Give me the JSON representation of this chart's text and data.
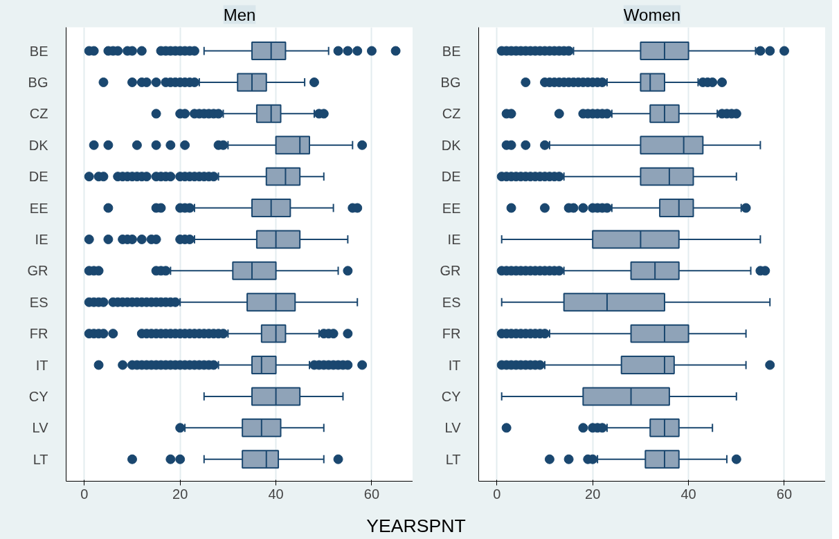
{
  "chart_data": [
    {
      "type": "box",
      "orientation": "horizontal",
      "title": "Men",
      "xlabel": "YEARSPNT",
      "color": "#8fa3b8",
      "grid": "x",
      "xlim": [
        -3.8,
        68.6
      ],
      "xticks": [
        0,
        20,
        40,
        60
      ],
      "categories": [
        "BE",
        "BG",
        "CZ",
        "DK",
        "DE",
        "EE",
        "IE",
        "GR",
        "ES",
        "FR",
        "IT",
        "CY",
        "LV",
        "LT"
      ],
      "boxes": [
        {
          "low": 25,
          "q1": 35,
          "median": 39,
          "q3": 42,
          "high": 51,
          "outliers": [
            1,
            2,
            5,
            6,
            7,
            9,
            10,
            12,
            16,
            17,
            18,
            19,
            20,
            21,
            22,
            23,
            53,
            55,
            57,
            60,
            65
          ]
        },
        {
          "low": 24,
          "q1": 32,
          "median": 35,
          "q3": 38,
          "high": 46,
          "outliers": [
            4,
            10,
            12,
            13,
            15,
            17,
            18,
            19,
            20,
            21,
            22,
            23,
            48
          ]
        },
        {
          "low": 29,
          "q1": 36,
          "median": 39,
          "q3": 41,
          "high": 48,
          "outliers": [
            15,
            20,
            21,
            23,
            24,
            25,
            26,
            27,
            28,
            49,
            50
          ]
        },
        {
          "low": 30,
          "q1": 40,
          "median": 45,
          "q3": 47,
          "high": 56,
          "outliers": [
            2,
            5,
            11,
            15,
            18,
            21,
            28,
            29,
            58
          ]
        },
        {
          "low": 28,
          "q1": 38,
          "median": 42,
          "q3": 45,
          "high": 50,
          "outliers": [
            1,
            3,
            4,
            7,
            8,
            9,
            10,
            11,
            12,
            13,
            15,
            16,
            17,
            18,
            20,
            21,
            22,
            23,
            24,
            25,
            26,
            27
          ]
        },
        {
          "low": 23,
          "q1": 35,
          "median": 39,
          "q3": 43,
          "high": 52,
          "outliers": [
            5,
            15,
            16,
            20,
            21,
            22,
            56,
            57
          ]
        },
        {
          "low": 23,
          "q1": 36,
          "median": 40,
          "q3": 45,
          "high": 55,
          "outliers": [
            1,
            5,
            8,
            9,
            10,
            12,
            14,
            15,
            20,
            21,
            22
          ]
        },
        {
          "low": 18,
          "q1": 31,
          "median": 35,
          "q3": 40,
          "high": 53,
          "outliers": [
            1,
            2,
            3,
            15,
            16,
            17,
            55
          ]
        },
        {
          "low": 20,
          "q1": 34,
          "median": 40,
          "q3": 44,
          "high": 57,
          "outliers": [
            1,
            2,
            3,
            4,
            6,
            7,
            8,
            9,
            10,
            11,
            12,
            13,
            14,
            15,
            16,
            17,
            18,
            19
          ]
        },
        {
          "low": 30,
          "q1": 37,
          "median": 40,
          "q3": 42,
          "high": 49,
          "outliers": [
            1,
            2,
            3,
            4,
            6,
            12,
            13,
            14,
            15,
            16,
            17,
            18,
            19,
            20,
            21,
            22,
            23,
            24,
            25,
            26,
            27,
            28,
            29,
            50,
            51,
            52,
            55
          ]
        },
        {
          "low": 28,
          "q1": 35,
          "median": 37,
          "q3": 40,
          "high": 47,
          "outliers": [
            3,
            8,
            10,
            11,
            12,
            13,
            14,
            15,
            16,
            17,
            18,
            19,
            20,
            21,
            22,
            23,
            24,
            25,
            26,
            27,
            48,
            49,
            50,
            51,
            52,
            53,
            54,
            55,
            58
          ]
        },
        {
          "low": 25,
          "q1": 35,
          "median": 40,
          "q3": 45,
          "high": 54
        },
        {
          "low": 21,
          "q1": 33,
          "median": 37,
          "q3": 41,
          "high": 50,
          "outliers": [
            20
          ]
        },
        {
          "low": 25,
          "q1": 33,
          "median": 38,
          "q3": 40.5,
          "high": 50,
          "outliers": [
            10,
            18,
            20,
            53
          ]
        }
      ]
    },
    {
      "type": "box",
      "orientation": "horizontal",
      "title": "Women",
      "color": "#8fa3b8",
      "grid": "x",
      "xlim": [
        -3.8,
        68.6
      ],
      "xticks": [
        0,
        20,
        40,
        60
      ],
      "categories": [
        "BE",
        "BG",
        "CZ",
        "DK",
        "DE",
        "EE",
        "IE",
        "GR",
        "ES",
        "FR",
        "IT",
        "CY",
        "LV",
        "LT"
      ],
      "boxes": [
        {
          "low": 16,
          "q1": 30,
          "median": 35,
          "q3": 40,
          "high": 54,
          "outliers": [
            1,
            2,
            3,
            4,
            5,
            6,
            7,
            8,
            9,
            10,
            11,
            12,
            13,
            14,
            15,
            55,
            57,
            60
          ]
        },
        {
          "low": 23,
          "q1": 30,
          "median": 32,
          "q3": 35,
          "high": 42,
          "outliers": [
            6,
            10,
            11,
            12,
            13,
            14,
            15,
            16,
            17,
            18,
            19,
            20,
            21,
            22,
            43,
            44,
            45,
            47
          ]
        },
        {
          "low": 24,
          "q1": 32,
          "median": 35,
          "q3": 38,
          "high": 46,
          "outliers": [
            2,
            3,
            13,
            18,
            19,
            20,
            21,
            22,
            23,
            47,
            48,
            49,
            50
          ]
        },
        {
          "low": 11,
          "q1": 30,
          "median": 39,
          "q3": 43,
          "high": 55,
          "outliers": [
            2,
            3,
            6,
            10
          ]
        },
        {
          "low": 14,
          "q1": 30,
          "median": 36,
          "q3": 41,
          "high": 50,
          "outliers": [
            1,
            2,
            3,
            4,
            5,
            6,
            7,
            8,
            9,
            10,
            11,
            12,
            13
          ]
        },
        {
          "low": 24,
          "q1": 34,
          "median": 38,
          "q3": 41,
          "high": 51,
          "outliers": [
            3,
            10,
            15,
            16,
            18,
            20,
            21,
            22,
            23,
            52
          ]
        },
        {
          "low": 1,
          "q1": 20,
          "median": 30,
          "q3": 38,
          "high": 55
        },
        {
          "low": 14,
          "q1": 28,
          "median": 33,
          "q3": 38,
          "high": 53,
          "outliers": [
            1,
            2,
            3,
            4,
            5,
            6,
            7,
            8,
            9,
            10,
            11,
            12,
            13,
            55,
            56
          ]
        },
        {
          "low": 1,
          "q1": 14,
          "median": 23,
          "q3": 35,
          "high": 57
        },
        {
          "low": 11,
          "q1": 28,
          "median": 35,
          "q3": 40,
          "high": 52,
          "outliers": [
            1,
            2,
            3,
            4,
            5,
            6,
            7,
            8,
            9,
            10
          ]
        },
        {
          "low": 10,
          "q1": 26,
          "median": 35,
          "q3": 37,
          "high": 52,
          "outliers": [
            1,
            2,
            3,
            4,
            5,
            6,
            7,
            8,
            9,
            57
          ]
        },
        {
          "low": 1,
          "q1": 18,
          "median": 28,
          "q3": 36,
          "high": 50
        },
        {
          "low": 23,
          "q1": 32,
          "median": 35,
          "q3": 38,
          "high": 45,
          "outliers": [
            2,
            18,
            20,
            21,
            22
          ]
        },
        {
          "low": 21,
          "q1": 31,
          "median": 35,
          "q3": 38,
          "high": 48,
          "outliers": [
            11,
            15,
            19,
            20,
            50
          ]
        }
      ]
    }
  ]
}
